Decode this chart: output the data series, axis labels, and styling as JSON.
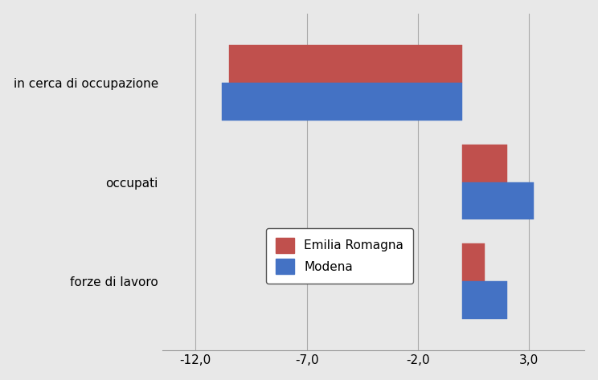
{
  "categories": [
    "forze di lavoro",
    "occupati",
    "in cerca di occupazione"
  ],
  "emilia_romagna": [
    1.0,
    2.0,
    -10.5
  ],
  "modena": [
    2.0,
    3.2,
    -10.8
  ],
  "emilia_color": "#c0504d",
  "modena_color": "#4472c4",
  "xlim": [
    -13.5,
    5.5
  ],
  "xticks": [
    -12.0,
    -7.0,
    -2.0,
    3.0
  ],
  "xtick_labels": [
    "-12,0",
    "-7,0",
    "-2,0",
    "3,0"
  ],
  "legend_labels": [
    "Emilia Romagna",
    "Modena"
  ],
  "bar_height": 0.38,
  "background_color": "#e8e8e8"
}
